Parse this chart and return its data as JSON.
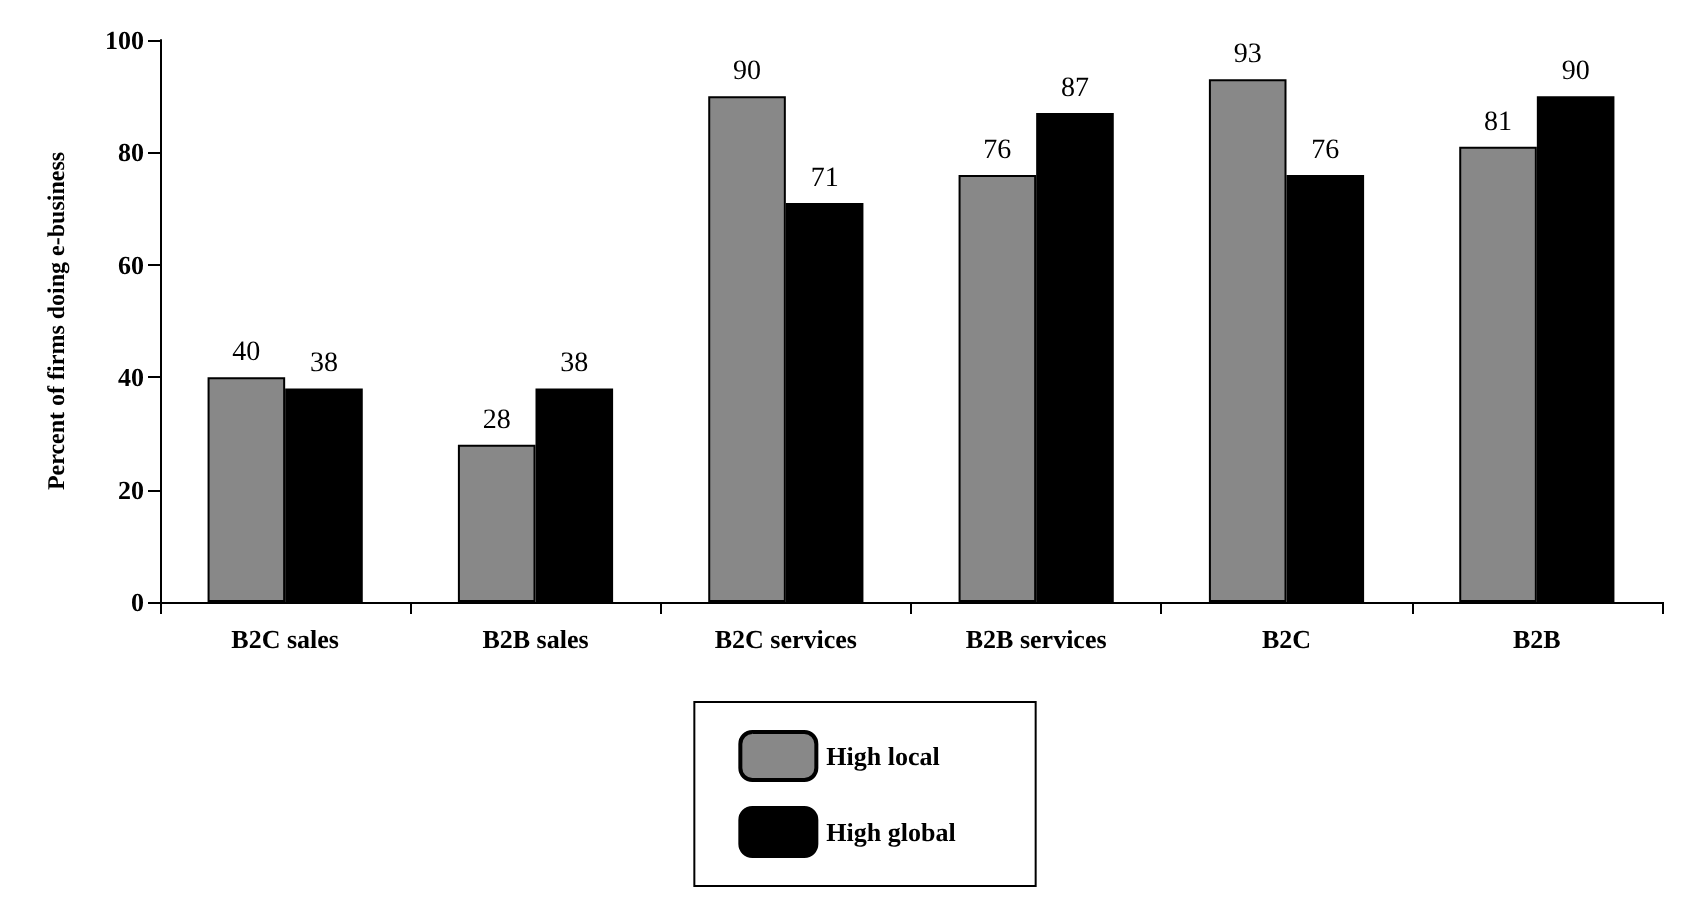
{
  "chart_data": {
    "type": "bar",
    "ylabel": "Percent of firms doing e-business",
    "categories": [
      "B2C sales",
      "B2B sales",
      "B2C services",
      "B2B services",
      "B2C",
      "B2B"
    ],
    "series": [
      {
        "name": "High local",
        "color": "#888888",
        "values": [
          40,
          28,
          90,
          76,
          93,
          81
        ]
      },
      {
        "name": "High global",
        "color": "#000000",
        "values": [
          38,
          38,
          71,
          87,
          76,
          90
        ]
      }
    ],
    "ylim": [
      0,
      100
    ],
    "yticks": [
      0,
      20,
      40,
      60,
      80,
      100
    ],
    "grid": false,
    "legend": "bottom",
    "data_labels": true
  }
}
